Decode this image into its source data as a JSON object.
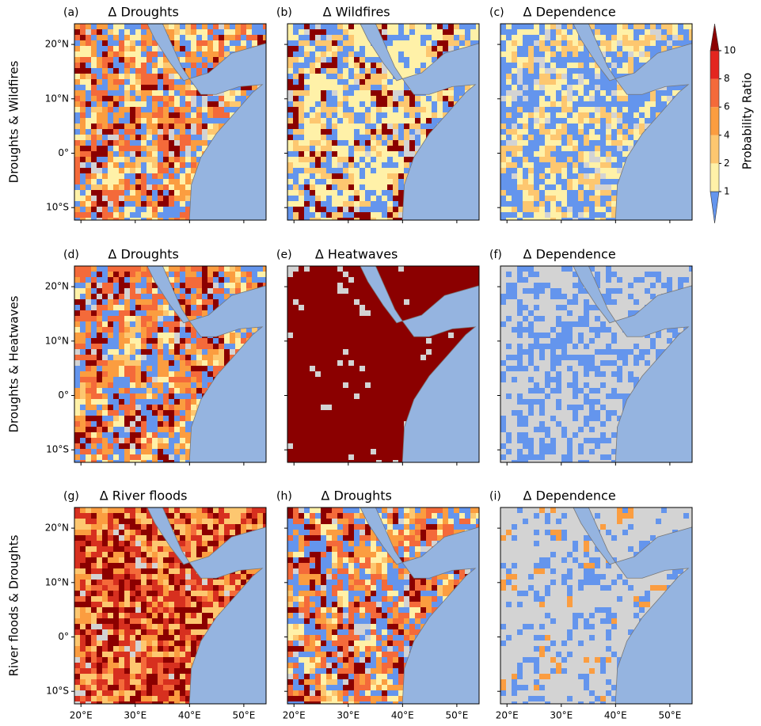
{
  "figure": {
    "row_labels": [
      "Droughts & Wildfires",
      "Droughts & Heatwaves",
      "River floods & Droughts"
    ],
    "panels": [
      {
        "letter": "(a)",
        "title": "Δ Droughts",
        "colors": [
          "#fdc770",
          "#fff1a8",
          "#fb9d40",
          "#6495ed",
          "#f46a3a",
          "#8b0000",
          "#d3d3d3"
        ]
      },
      {
        "letter": "(b)",
        "title": "Δ Wildfires",
        "colors": [
          "#fff1a8",
          "#fff1a8",
          "#fff1a8",
          "#6495ed",
          "#fdc770",
          "#8b0000",
          "#d3d3d3"
        ]
      },
      {
        "letter": "(c)",
        "title": "Δ Dependence",
        "colors": [
          "#d3d3d3",
          "#fff1a8",
          "#6495ed",
          "#6495ed",
          "#fdc770",
          "#fff1a8",
          "#d3d3d3"
        ]
      },
      {
        "letter": "(d)",
        "title": "Δ Droughts",
        "colors": [
          "#fdc770",
          "#fff1a8",
          "#fb9d40",
          "#6495ed",
          "#f46a3a",
          "#8b0000",
          "#d3d3d3"
        ]
      },
      {
        "letter": "(e)",
        "title": "Δ Heatwaves",
        "colors": [
          "#8b0000",
          "#8b0000",
          "#8b0000",
          "#8b0000",
          "#8b0000",
          "#8b0000",
          "#d3d3d3"
        ]
      },
      {
        "letter": "(f)",
        "title": "Δ Dependence",
        "colors": [
          "#d3d3d3",
          "#d3d3d3",
          "#d3d3d3",
          "#6495ed",
          "#d3d3d3",
          "#6495ed",
          "#d3d3d3"
        ]
      },
      {
        "letter": "(g)",
        "title": "Δ River floods",
        "colors": [
          "#8b0000",
          "#fb9d40",
          "#fdc770",
          "#d7301f",
          "#8b0000",
          "#f46a3a",
          "#d3d3d3"
        ]
      },
      {
        "letter": "(h)",
        "title": "Δ Droughts",
        "colors": [
          "#fdc770",
          "#fff1a8",
          "#fb9d40",
          "#6495ed",
          "#f46a3a",
          "#8b0000",
          "#d3d3d3"
        ]
      },
      {
        "letter": "(i)",
        "title": "Δ Dependence",
        "colors": [
          "#d3d3d3",
          "#d3d3d3",
          "#d3d3d3",
          "#d3d3d3",
          "#6495ed",
          "#d3d3d3",
          "#fb9d40"
        ]
      }
    ],
    "lonlim": [
      18.8,
      54.1
    ],
    "latlim": [
      -12.3,
      23.8
    ],
    "lon_ticks": [
      {
        "value": 20,
        "label": "20°E"
      },
      {
        "value": 30,
        "label": "30°E"
      },
      {
        "value": 40,
        "label": "40°E"
      },
      {
        "value": 50,
        "label": "50°E"
      }
    ],
    "lat_ticks": [
      {
        "value": 20,
        "label": "20°N"
      },
      {
        "value": 10,
        "label": "10°N"
      },
      {
        "value": 0,
        "label": "0°"
      },
      {
        "value": -10,
        "label": "10°S"
      }
    ],
    "colorbar": {
      "label": "Probability Ratio",
      "ticks": [
        1,
        2,
        4,
        6,
        8,
        10
      ],
      "colors": [
        "#fff1a8",
        "#fdc770",
        "#fb9d40",
        "#f46a3a",
        "#e3261f"
      ],
      "under_color": "#6495ed",
      "over_color": "#8b0000"
    }
  }
}
